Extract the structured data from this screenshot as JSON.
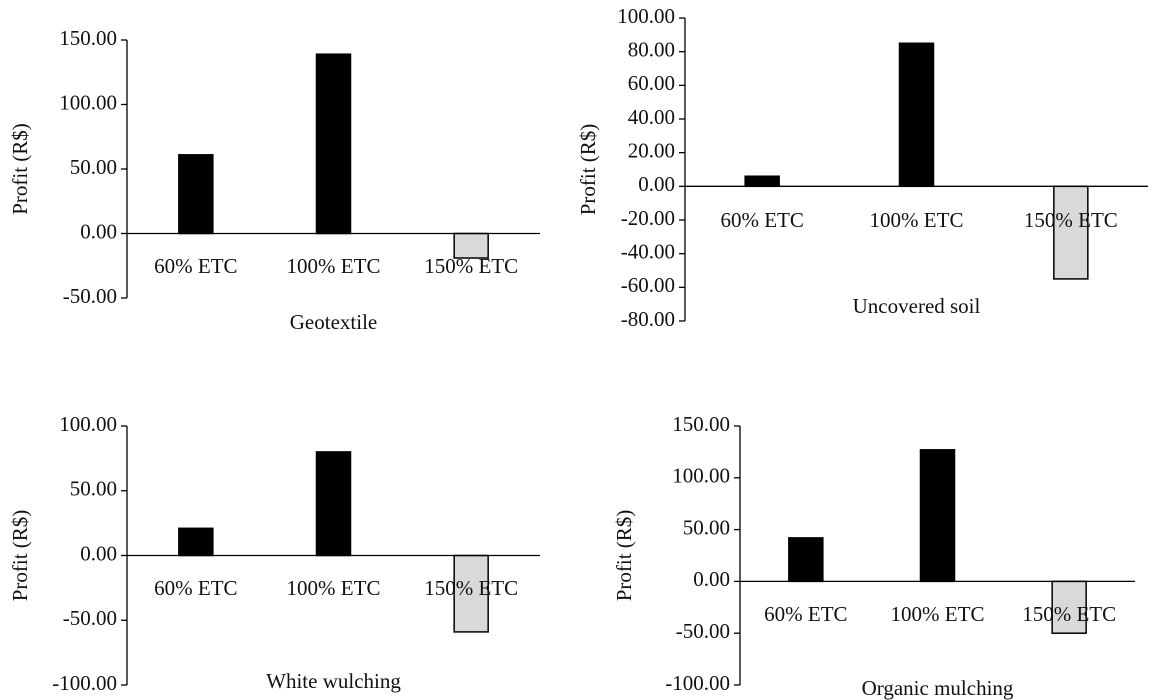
{
  "figure": {
    "background": "#ffffff"
  },
  "chart_data": [
    {
      "type": "bar",
      "title": "",
      "xlabel": "Geotextile",
      "ylabel": "Profit (R$)",
      "categories": [
        "60% ETC",
        "100% ETC",
        "150% ETC"
      ],
      "values": [
        61,
        139,
        -19
      ],
      "ylim": [
        -50,
        150
      ],
      "yticks": [
        -50,
        0,
        50,
        100,
        150
      ],
      "ytick_labels": [
        "-50.00",
        "0.00",
        "50.00",
        "100.00",
        "150.00"
      ],
      "bar_colors": [
        "#000000",
        "#000000",
        "#d9d9d9"
      ],
      "grid": false,
      "legend": "none"
    },
    {
      "type": "bar",
      "title": "",
      "xlabel": "Uncovered soil",
      "ylabel": "Profit (R$)",
      "categories": [
        "60% ETC",
        "100% ETC",
        "150% ETC"
      ],
      "values": [
        6,
        85,
        -55
      ],
      "ylim": [
        -80,
        100
      ],
      "yticks": [
        -80,
        -60,
        -40,
        -20,
        0,
        20,
        40,
        60,
        80,
        100
      ],
      "ytick_labels": [
        "-80.00",
        "-60.00",
        "-40.00",
        "-20.00",
        "0.00",
        "20.00",
        "40.00",
        "60.00",
        "80.00",
        "100.00"
      ],
      "bar_colors": [
        "#000000",
        "#000000",
        "#d9d9d9"
      ],
      "grid": false,
      "legend": "none"
    },
    {
      "type": "bar",
      "title": "",
      "xlabel": "White wulching",
      "ylabel": "Profit (R$)",
      "categories": [
        "60% ETC",
        "100% ETC",
        "150% ETC"
      ],
      "values": [
        21,
        80,
        -59
      ],
      "ylim": [
        -100,
        100
      ],
      "yticks": [
        -100,
        -50,
        0,
        50,
        100
      ],
      "ytick_labels": [
        "-100.00",
        "-50.00",
        "0.00",
        "50.00",
        "100.00"
      ],
      "bar_colors": [
        "#000000",
        "#000000",
        "#d9d9d9"
      ],
      "grid": false,
      "legend": "none"
    },
    {
      "type": "bar",
      "title": "",
      "xlabel": "Organic mulching",
      "ylabel": "Profit (R$)",
      "categories": [
        "60% ETC",
        "100% ETC",
        "150% ETC"
      ],
      "values": [
        42,
        127,
        -50
      ],
      "ylim": [
        -100,
        150
      ],
      "yticks": [
        -100,
        -50,
        0,
        50,
        100,
        150
      ],
      "ytick_labels": [
        "-100.00",
        "-50.00",
        "0.00",
        "50.00",
        "100.00",
        "150.00"
      ],
      "bar_colors": [
        "#000000",
        "#000000",
        "#d9d9d9"
      ],
      "grid": false,
      "legend": "none"
    }
  ]
}
